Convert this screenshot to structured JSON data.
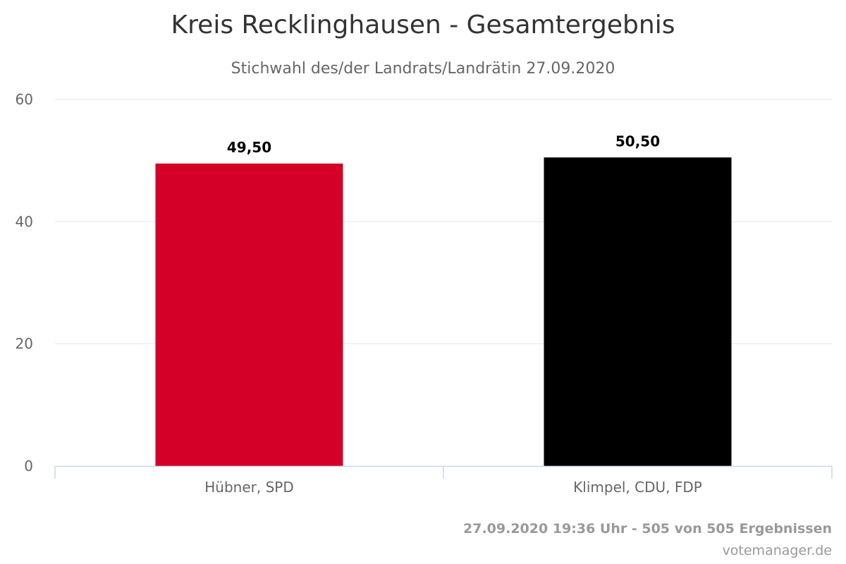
{
  "chart_data": {
    "type": "bar",
    "title": "Kreis Recklinghausen - Gesamtergebnis",
    "subtitle": "Stichwahl des/der Landrats/Landrätin 27.09.2020",
    "categories": [
      "Hübner, SPD",
      "Klimpel, CDU, FDP"
    ],
    "values": [
      49.5,
      50.5
    ],
    "value_labels": [
      "49,50",
      "50,50"
    ],
    "colors": [
      "#d40028",
      "#000000"
    ],
    "ylim": [
      0,
      60
    ],
    "yticks": [
      0,
      20,
      40,
      60
    ],
    "ytick_labels": [
      "0",
      "20",
      "40",
      "60"
    ],
    "grid": true,
    "legend": "none",
    "xlabel": "",
    "ylabel": ""
  },
  "footer": {
    "timestamp": "27.09.2020 19:36 Uhr - 505 von 505 Ergebnissen",
    "credit": "votemanager.de"
  },
  "style": {
    "grid_color": "#e6e6e6",
    "axis_color": "#ccd6eb"
  }
}
